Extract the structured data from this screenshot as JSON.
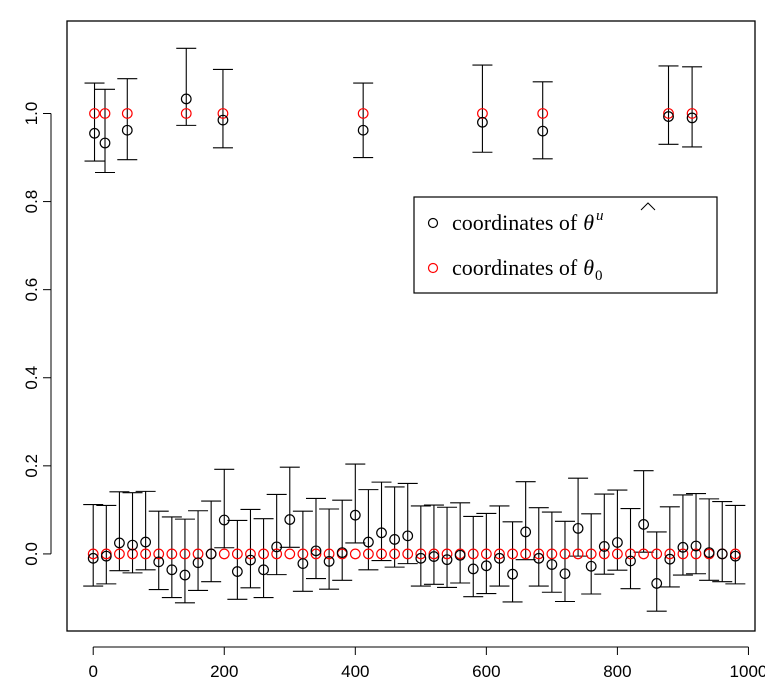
{
  "chart_data": {
    "type": "scatter",
    "xlim": [
      -40,
      1010
    ],
    "ylim": [
      -0.175,
      1.21
    ],
    "x_ticks": [
      0,
      200,
      400,
      600,
      800,
      1000
    ],
    "x_tick_labels": [
      "0",
      "200",
      "400",
      "600",
      "800",
      "1000"
    ],
    "y_ticks": [
      0.0,
      0.2,
      0.4,
      0.6,
      0.8,
      1.0
    ],
    "y_tick_labels": [
      "0.0",
      "0.2",
      "0.4",
      "0.6",
      "0.8",
      "1.0"
    ],
    "grid": false,
    "legend_position": "right",
    "legend": {
      "entries": [
        {
          "marker": "o",
          "color": "#000000",
          "text": "coordinates of",
          "symbol": "θ",
          "symbol_accent": "hat",
          "superscript": "u"
        },
        {
          "marker": "o",
          "color": "#ff0000",
          "text": "coordinates of",
          "symbol": "θ",
          "subscript": "0"
        }
      ]
    },
    "series": [
      {
        "name": "coordinates of θ̂^u",
        "color": "#000000",
        "marker": "open-circle",
        "x": [
          0,
          20,
          40,
          60,
          80,
          100,
          120,
          140,
          160,
          180,
          200,
          220,
          240,
          260,
          280,
          300,
          320,
          340,
          360,
          380,
          400,
          420,
          440,
          460,
          480,
          500,
          520,
          540,
          560,
          580,
          600,
          620,
          640,
          660,
          680,
          700,
          720,
          740,
          760,
          780,
          800,
          820,
          840,
          860,
          880,
          900,
          920,
          940,
          960,
          980,
          2,
          18,
          52,
          142,
          198,
          412,
          594,
          686,
          878,
          914
        ],
        "y": [
          -0.01,
          -0.005,
          0.025,
          0.02,
          0.027,
          -0.018,
          -0.036,
          -0.048,
          -0.02,
          0.0,
          0.077,
          -0.04,
          -0.014,
          -0.036,
          0.016,
          0.078,
          -0.022,
          0.007,
          -0.017,
          0.003,
          0.088,
          0.027,
          0.048,
          0.033,
          0.041,
          -0.01,
          -0.006,
          -0.013,
          -0.003,
          -0.034,
          -0.027,
          -0.01,
          -0.046,
          0.05,
          -0.01,
          -0.024,
          -0.045,
          0.058,
          -0.028,
          0.017,
          0.026,
          -0.016,
          0.067,
          -0.067,
          -0.012,
          0.015,
          0.018,
          0.003,
          0.0,
          -0.005,
          0.955,
          0.933,
          0.962,
          1.033,
          0.985,
          0.962,
          0.98,
          0.96,
          0.993,
          0.99
        ],
        "y_lower": [
          -0.073,
          -0.068,
          -0.038,
          -0.043,
          -0.036,
          -0.081,
          -0.099,
          -0.111,
          -0.083,
          -0.063,
          0.014,
          -0.103,
          -0.077,
          -0.099,
          -0.047,
          0.015,
          -0.085,
          -0.056,
          -0.08,
          -0.06,
          0.025,
          -0.036,
          -0.015,
          -0.03,
          -0.022,
          -0.073,
          -0.069,
          -0.076,
          -0.066,
          -0.097,
          -0.09,
          -0.073,
          -0.109,
          -0.013,
          -0.073,
          -0.087,
          -0.108,
          -0.005,
          -0.091,
          -0.046,
          -0.037,
          -0.079,
          0.004,
          -0.13,
          -0.075,
          -0.048,
          -0.045,
          -0.06,
          -0.063,
          -0.068,
          0.892,
          0.866,
          0.895,
          0.973,
          0.922,
          0.9,
          0.912,
          0.897,
          0.93,
          0.924
        ],
        "y_upper": [
          0.112,
          0.11,
          0.141,
          0.139,
          0.142,
          0.097,
          0.084,
          0.079,
          0.098,
          0.12,
          0.192,
          0.076,
          0.101,
          0.08,
          0.135,
          0.197,
          0.097,
          0.126,
          0.102,
          0.122,
          0.204,
          0.146,
          0.163,
          0.152,
          0.16,
          0.109,
          0.111,
          0.106,
          0.116,
          0.085,
          0.092,
          0.109,
          0.073,
          0.164,
          0.105,
          0.095,
          0.074,
          0.172,
          0.091,
          0.136,
          0.145,
          0.103,
          0.189,
          0.05,
          0.107,
          0.134,
          0.137,
          0.125,
          0.119,
          0.11,
          1.069,
          1.055,
          1.079,
          1.148,
          1.1,
          1.069,
          1.11,
          1.072,
          1.108,
          1.106
        ]
      },
      {
        "name": "coordinates of θ0",
        "color": "#ff0000",
        "marker": "open-circle",
        "x": [
          0,
          20,
          40,
          60,
          80,
          100,
          120,
          140,
          160,
          180,
          200,
          220,
          240,
          260,
          280,
          300,
          320,
          340,
          360,
          380,
          400,
          420,
          440,
          460,
          480,
          500,
          520,
          540,
          560,
          580,
          600,
          620,
          640,
          660,
          680,
          700,
          720,
          740,
          760,
          780,
          800,
          820,
          840,
          860,
          880,
          900,
          920,
          940,
          960,
          980,
          2,
          18,
          52,
          142,
          198,
          412,
          594,
          686,
          878,
          914
        ],
        "y": [
          0,
          0,
          0,
          0,
          0,
          0,
          0,
          0,
          0,
          0,
          0,
          0,
          0,
          0,
          0,
          0,
          0,
          0,
          0,
          0,
          0,
          0,
          0,
          0,
          0,
          0,
          0,
          0,
          0,
          0,
          0,
          0,
          0,
          0,
          0,
          0,
          0,
          0,
          0,
          0,
          0,
          0,
          0,
          0,
          0,
          0,
          0,
          0,
          0,
          0,
          1,
          1,
          1,
          1,
          1,
          1,
          1,
          1,
          1,
          1
        ]
      }
    ]
  }
}
